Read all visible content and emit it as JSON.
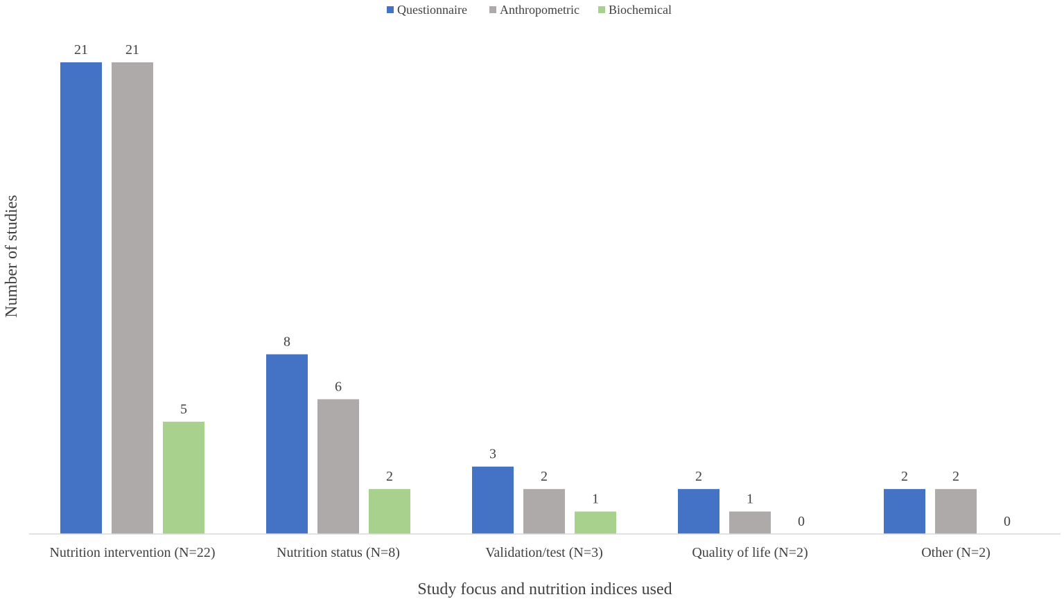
{
  "chart_data": {
    "type": "bar",
    "xlabel": "Study focus and nutrition indices used",
    "ylabel": "Number of studies",
    "ylim": [
      0,
      21
    ],
    "grid": false,
    "legend_position": "top",
    "categories": [
      "Nutrition intervention (N=22)",
      "Nutrition status (N=8)",
      "Validation/test (N=3)",
      "Quality of life (N=2)",
      "Other (N=2)"
    ],
    "series": [
      {
        "name": "Questionnaire",
        "color": "#4472c4",
        "values": [
          21,
          8,
          3,
          2,
          2
        ]
      },
      {
        "name": "Anthropometric",
        "color": "#aeaaaa",
        "values": [
          21,
          6,
          2,
          1,
          2
        ]
      },
      {
        "name": "Biochemical",
        "color": "#a9d18e",
        "values": [
          5,
          2,
          1,
          0,
          0
        ]
      }
    ]
  }
}
